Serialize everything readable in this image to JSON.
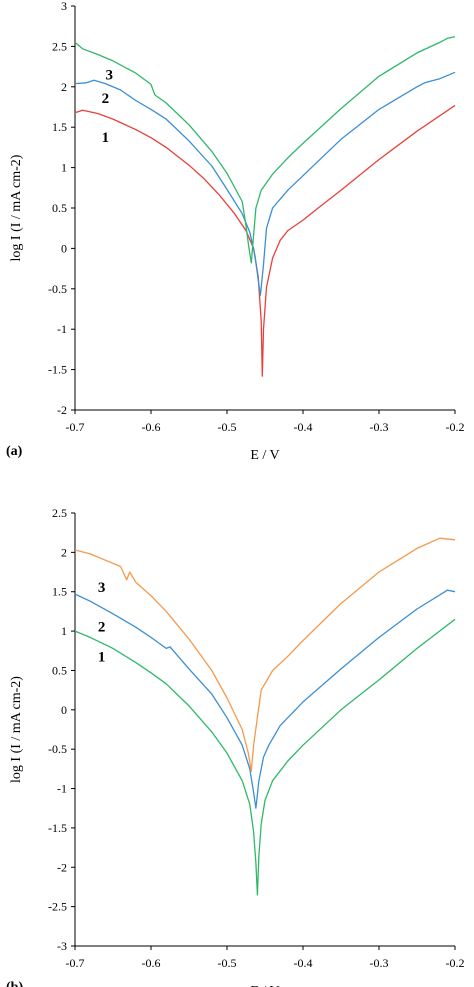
{
  "chart_data": [
    {
      "type": "line",
      "panel_label": "(a)",
      "xlabel": "E / V",
      "ylabel": "log I (I / mA cm-2)",
      "xlim": [
        -0.7,
        -0.2
      ],
      "ylim": [
        -2,
        3
      ],
      "xticks": [
        -0.7,
        -0.6,
        -0.5,
        -0.4,
        -0.3,
        -0.2
      ],
      "xtick_labels": [
        "-0.7",
        "-0.6",
        "-0.5",
        "-0.4",
        "-0.3",
        "-0.2"
      ],
      "yticks": [
        -2,
        -1.5,
        -1,
        -0.5,
        0,
        0.5,
        1,
        1.5,
        2,
        2.5,
        3
      ],
      "ytick_labels": [
        "-2",
        "-1.5",
        "-1",
        "-0.5",
        "0",
        "0.5",
        "1",
        "1.5",
        "2",
        "2.5",
        "3"
      ],
      "grid": false,
      "series": [
        {
          "name": "1",
          "color": "#e8403a",
          "label_at": [
            -0.66,
            1.38
          ],
          "x": [
            -0.7,
            -0.69,
            -0.67,
            -0.65,
            -0.62,
            -0.6,
            -0.58,
            -0.55,
            -0.53,
            -0.51,
            -0.49,
            -0.475,
            -0.465,
            -0.459,
            -0.455,
            -0.4535,
            -0.452,
            -0.448,
            -0.44,
            -0.43,
            -0.42,
            -0.4,
            -0.38,
            -0.35,
            -0.3,
            -0.25,
            -0.2
          ],
          "y": [
            1.68,
            1.71,
            1.67,
            1.6,
            1.47,
            1.37,
            1.25,
            1.03,
            0.86,
            0.66,
            0.43,
            0.22,
            0.0,
            -0.35,
            -0.9,
            -1.58,
            -1.0,
            -0.48,
            -0.12,
            0.1,
            0.22,
            0.35,
            0.5,
            0.72,
            1.1,
            1.45,
            1.77
          ]
        },
        {
          "name": "2",
          "color": "#3b8fd3",
          "label_at": [
            -0.66,
            1.86
          ],
          "x": [
            -0.7,
            -0.685,
            -0.675,
            -0.66,
            -0.64,
            -0.62,
            -0.6,
            -0.58,
            -0.55,
            -0.52,
            -0.5,
            -0.48,
            -0.47,
            -0.463,
            -0.458,
            -0.456,
            -0.452,
            -0.448,
            -0.44,
            -0.42,
            -0.4,
            -0.35,
            -0.3,
            -0.25,
            -0.24,
            -0.22,
            -0.2
          ],
          "y": [
            2.04,
            2.05,
            2.08,
            2.04,
            1.96,
            1.83,
            1.72,
            1.6,
            1.33,
            1.02,
            0.73,
            0.43,
            0.2,
            -0.1,
            -0.45,
            -0.58,
            -0.2,
            0.25,
            0.5,
            0.72,
            0.9,
            1.35,
            1.72,
            2.0,
            2.05,
            2.1,
            2.18
          ]
        },
        {
          "name": "3",
          "color": "#2fb86a",
          "label_at": [
            -0.655,
            2.15
          ],
          "x": [
            -0.7,
            -0.69,
            -0.67,
            -0.65,
            -0.62,
            -0.6,
            -0.595,
            -0.58,
            -0.55,
            -0.52,
            -0.5,
            -0.48,
            -0.475,
            -0.471,
            -0.468,
            -0.466,
            -0.462,
            -0.455,
            -0.44,
            -0.42,
            -0.4,
            -0.35,
            -0.3,
            -0.25,
            -0.22,
            -0.21,
            -0.2
          ],
          "y": [
            2.55,
            2.47,
            2.4,
            2.32,
            2.17,
            2.03,
            1.9,
            1.8,
            1.53,
            1.2,
            0.93,
            0.58,
            0.28,
            0.0,
            -0.18,
            0.05,
            0.5,
            0.72,
            0.92,
            1.12,
            1.3,
            1.73,
            2.13,
            2.42,
            2.55,
            2.6,
            2.62
          ]
        }
      ]
    },
    {
      "type": "line",
      "panel_label": "(b)",
      "xlabel": "E / V",
      "ylabel": "log I (I / mA cm-2)",
      "xlim": [
        -0.7,
        -0.2
      ],
      "ylim": [
        -3,
        2.5
      ],
      "xticks": [
        -0.7,
        -0.6,
        -0.5,
        -0.4,
        -0.3,
        -0.2
      ],
      "xtick_labels": [
        "-0.7",
        "-0.6",
        "-0.5",
        "-0.4",
        "-0.3",
        "-0.2"
      ],
      "yticks": [
        -3,
        -2.5,
        -2,
        -1.5,
        -1,
        -0.5,
        0,
        0.5,
        1,
        1.5,
        2,
        2.5
      ],
      "ytick_labels": [
        "-3",
        "-2.5",
        "-2",
        "-1.5",
        "-1",
        "-0.5",
        "0",
        "0.5",
        "1",
        "1.5",
        "2",
        "2.5"
      ],
      "grid": false,
      "series": [
        {
          "name": "1",
          "color": "#2fb86a",
          "label_at": [
            -0.665,
            0.68
          ],
          "x": [
            -0.7,
            -0.68,
            -0.65,
            -0.62,
            -0.6,
            -0.58,
            -0.55,
            -0.52,
            -0.5,
            -0.48,
            -0.47,
            -0.465,
            -0.462,
            -0.46,
            -0.458,
            -0.455,
            -0.45,
            -0.44,
            -0.42,
            -0.4,
            -0.35,
            -0.3,
            -0.25,
            -0.2
          ],
          "y": [
            1.0,
            0.92,
            0.78,
            0.6,
            0.47,
            0.33,
            0.05,
            -0.28,
            -0.55,
            -0.9,
            -1.2,
            -1.55,
            -1.95,
            -2.35,
            -1.85,
            -1.45,
            -1.15,
            -0.9,
            -0.65,
            -0.45,
            0.0,
            0.38,
            0.78,
            1.15
          ]
        },
        {
          "name": "2",
          "color": "#3b8fd3",
          "label_at": [
            -0.665,
            1.06
          ],
          "x": [
            -0.7,
            -0.68,
            -0.65,
            -0.62,
            -0.6,
            -0.58,
            -0.575,
            -0.55,
            -0.52,
            -0.5,
            -0.48,
            -0.47,
            -0.465,
            -0.462,
            -0.458,
            -0.452,
            -0.445,
            -0.43,
            -0.4,
            -0.35,
            -0.3,
            -0.25,
            -0.21,
            -0.2
          ],
          "y": [
            1.47,
            1.38,
            1.22,
            1.05,
            0.92,
            0.78,
            0.8,
            0.52,
            0.2,
            -0.1,
            -0.45,
            -0.75,
            -1.05,
            -1.25,
            -0.9,
            -0.6,
            -0.45,
            -0.2,
            0.1,
            0.52,
            0.92,
            1.28,
            1.52,
            1.5
          ]
        },
        {
          "name": "3",
          "color": "#f39a4c",
          "label_at": [
            -0.665,
            1.56
          ],
          "x": [
            -0.7,
            -0.68,
            -0.66,
            -0.64,
            -0.632,
            -0.628,
            -0.62,
            -0.6,
            -0.58,
            -0.55,
            -0.52,
            -0.5,
            -0.48,
            -0.472,
            -0.468,
            -0.465,
            -0.46,
            -0.455,
            -0.44,
            -0.42,
            -0.4,
            -0.35,
            -0.3,
            -0.25,
            -0.22,
            -0.2
          ],
          "y": [
            2.03,
            1.98,
            1.9,
            1.82,
            1.65,
            1.75,
            1.62,
            1.45,
            1.25,
            0.9,
            0.5,
            0.15,
            -0.25,
            -0.55,
            -0.78,
            -0.45,
            -0.1,
            0.25,
            0.5,
            0.68,
            0.88,
            1.35,
            1.75,
            2.05,
            2.18,
            2.16
          ]
        }
      ]
    }
  ]
}
